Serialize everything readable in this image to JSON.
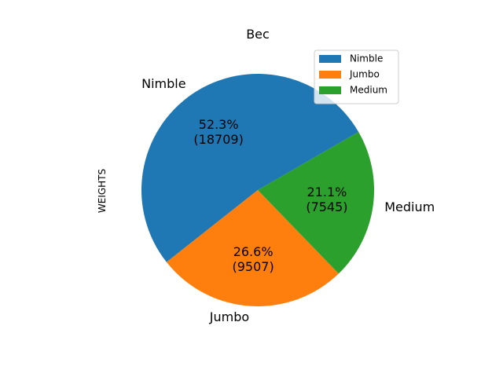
{
  "chart_data": {
    "type": "pie",
    "title": "Bec",
    "ylabel": "WEIGHTS",
    "categories": [
      "Nimble",
      "Jumbo",
      "Medium"
    ],
    "values": [
      18709,
      9507,
      7545
    ],
    "percent_labels": [
      "52.3%",
      "26.6%",
      "21.1%"
    ],
    "value_labels": [
      "(18709)",
      "(9507)",
      "(7545)"
    ],
    "colors": [
      "#1f77b4",
      "#ff7f0e",
      "#2ca02c"
    ],
    "start_angle_deg": 30,
    "direction": "counterclockwise",
    "legend": {
      "placement": "upper-right",
      "entries": [
        "Nimble",
        "Jumbo",
        "Medium"
      ]
    }
  }
}
